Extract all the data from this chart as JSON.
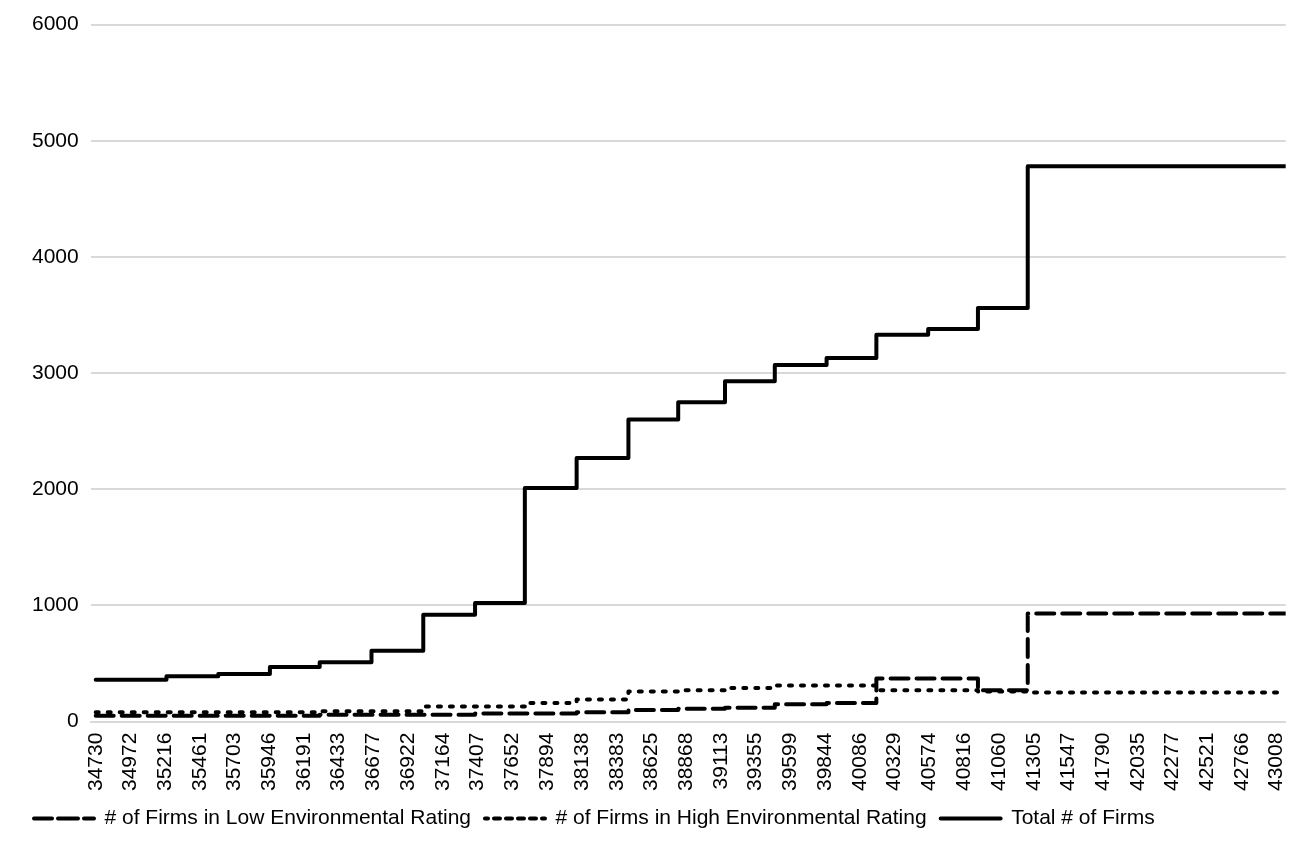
{
  "chart_data": {
    "type": "step",
    "xlim": [
      34695,
      43071
    ],
    "xticks": [
      34730,
      34972,
      35216,
      35461,
      35703,
      35946,
      36191,
      36433,
      36677,
      36922,
      37164,
      37407,
      37652,
      37894,
      38138,
      38383,
      38625,
      38868,
      39113,
      39355,
      39599,
      39844,
      40086,
      40329,
      40574,
      40816,
      41060,
      41305,
      41547,
      41790,
      42035,
      42277,
      42521,
      42766,
      43008
    ],
    "ylim": [
      0,
      6000
    ],
    "yticks": [
      0,
      1000,
      2000,
      3000,
      4000,
      5000,
      6000
    ],
    "grid": "y",
    "legend": "bottom",
    "marker": "none",
    "series": [
      {
        "name": "# of Firms in Low Environmental Rating",
        "color": "#000000",
        "line_style": "dashed",
        "x": [
          34730,
          35226,
          35589,
          35951,
          36300,
          36663,
          37026,
          37389,
          37738,
          38101,
          38464,
          38813,
          39141,
          39490,
          39853,
          40202,
          40565,
          40914,
          41263,
          43071
        ],
        "values": [
          50,
          50,
          50,
          50,
          60,
          60,
          60,
          70,
          70,
          80,
          100,
          110,
          120,
          150,
          160,
          370,
          370,
          270,
          930,
          930
        ]
      },
      {
        "name": "# of Firms in High Environmental Rating",
        "color": "#000000",
        "line_style": "dotted",
        "x": [
          34730,
          35226,
          35589,
          35951,
          36300,
          36663,
          37026,
          37389,
          37738,
          38101,
          38464,
          38813,
          39141,
          39490,
          39853,
          40202,
          40565,
          40914,
          41263,
          43071
        ],
        "values": [
          80,
          80,
          80,
          80,
          90,
          90,
          130,
          130,
          160,
          190,
          260,
          270,
          290,
          310,
          310,
          270,
          270,
          260,
          250,
          250
        ]
      },
      {
        "name": "Total # of Firms",
        "color": "#000000",
        "line_style": "solid",
        "x": [
          34730,
          35226,
          35589,
          35951,
          36300,
          36663,
          37026,
          37389,
          37738,
          38101,
          38464,
          38813,
          39141,
          39490,
          39853,
          40202,
          40565,
          40914,
          41263,
          43071
        ],
        "values": [
          360,
          390,
          410,
          470,
          510,
          610,
          920,
          1020,
          2010,
          2270,
          2600,
          2750,
          2930,
          3070,
          3130,
          3330,
          3380,
          3560,
          4780,
          4780
        ]
      }
    ]
  }
}
